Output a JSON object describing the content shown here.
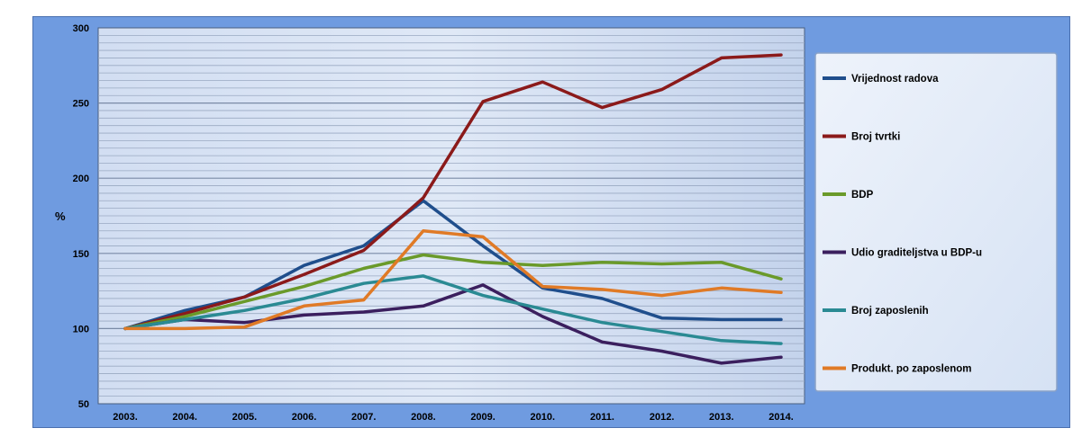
{
  "chart_data": {
    "type": "line",
    "title": "",
    "xlabel": "",
    "ylabel": "%",
    "ylim": [
      50,
      300
    ],
    "yticks": [
      50,
      100,
      150,
      200,
      250,
      300
    ],
    "categories": [
      "2003.",
      "2004.",
      "2005.",
      "2006.",
      "2007.",
      "2008.",
      "2009.",
      "2010.",
      "2011.",
      "2012.",
      "2013.",
      "2014."
    ],
    "legend_position": "right",
    "grid": true,
    "series": [
      {
        "name": "Vrijednost radova",
        "color": "#1f4e8c",
        "values": [
          100,
          112,
          121,
          142,
          155,
          185,
          155,
          127,
          120,
          107,
          106,
          106
        ]
      },
      {
        "name": "Broj tvrtki",
        "color": "#8b1a1a",
        "values": [
          100,
          110,
          121,
          136,
          152,
          187,
          251,
          264,
          247,
          259,
          280,
          282
        ]
      },
      {
        "name": "BDP",
        "color": "#6a9a2a",
        "values": [
          100,
          108,
          118,
          128,
          140,
          149,
          144,
          142,
          144,
          143,
          144,
          133
        ]
      },
      {
        "name": "Udio graditeljstva u BDP-u",
        "color": "#3b1f5e",
        "values": [
          100,
          106,
          104,
          109,
          111,
          115,
          129,
          108,
          91,
          85,
          77,
          81
        ]
      },
      {
        "name": "Broj zaposlenih",
        "color": "#2a8a93",
        "values": [
          100,
          106,
          112,
          120,
          130,
          135,
          122,
          113,
          104,
          98,
          92,
          90
        ]
      },
      {
        "name": "Produkt. po zaposlenom",
        "color": "#e07a26",
        "values": [
          100,
          100,
          101,
          115,
          119,
          165,
          161,
          128,
          126,
          122,
          127,
          124
        ]
      }
    ]
  }
}
